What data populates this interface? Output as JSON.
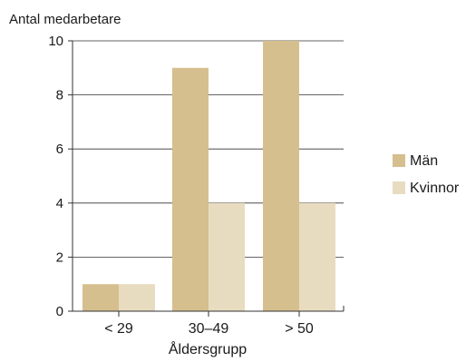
{
  "chart_data": {
    "type": "bar",
    "title": "",
    "ylabel": "Antal medarbetare",
    "xlabel": "Åldersgrupp",
    "categories": [
      "< 29",
      "30–49",
      "> 50"
    ],
    "series": [
      {
        "name": "Män",
        "values": [
          1,
          9,
          10
        ],
        "color": "#d6bf8e"
      },
      {
        "name": "Kvinnor",
        "values": [
          1,
          4,
          4
        ],
        "color": "#e8dcc0"
      }
    ],
    "ylim": [
      0,
      10
    ],
    "yticks": [
      0,
      2,
      4,
      6,
      8,
      10
    ],
    "grid": true,
    "legend_position": "right"
  }
}
